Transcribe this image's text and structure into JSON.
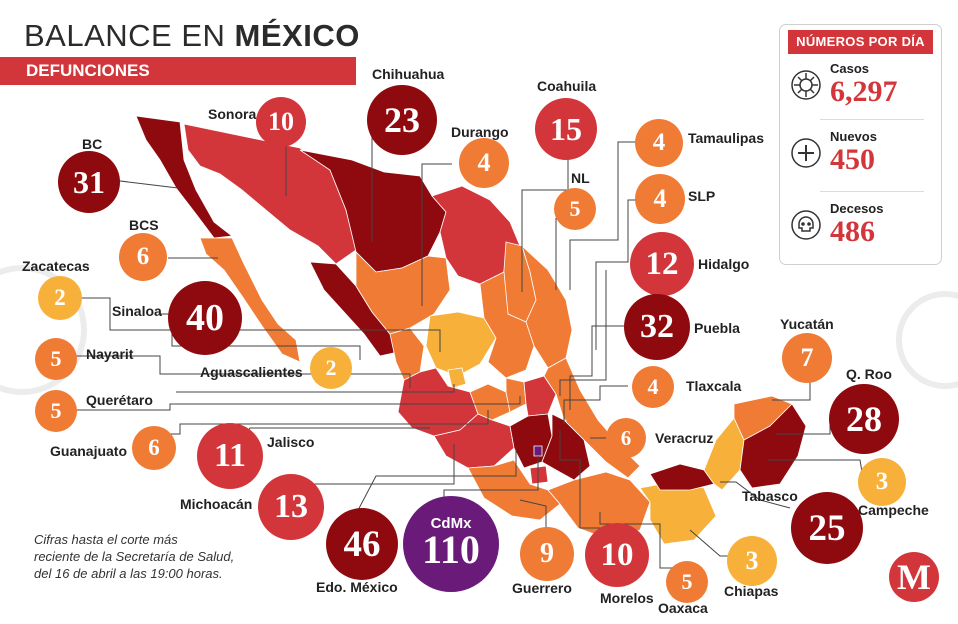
{
  "header": {
    "title_light": "BALANCE EN",
    "title_bold": "MÉXICO",
    "subtitle": "DEFUNCIONES"
  },
  "colors": {
    "level_1": "#f7b13b",
    "level_2": "#f07b35",
    "level_3": "#d3363a",
    "level_4": "#8f0a0f",
    "cdmx": "#6a1b7a",
    "accent": "#d3363a"
  },
  "stats_panel": {
    "heading": "NÚMEROS POR DÍA",
    "casos_label": "Casos",
    "casos_value": "6,297",
    "nuevos_label": "Nuevos",
    "nuevos_value": "450",
    "decesos_label": "Decesos",
    "decesos_value": "486",
    "icons": [
      "virus-icon",
      "plus-icon",
      "skull-icon"
    ]
  },
  "states": [
    {
      "name": "BC",
      "deaths": "31",
      "level": 4
    },
    {
      "name": "Sonora",
      "deaths": "10",
      "level": 3
    },
    {
      "name": "Chihuahua",
      "deaths": "23",
      "level": 4
    },
    {
      "name": "Durango",
      "deaths": "4",
      "level": 2
    },
    {
      "name": "Coahuila",
      "deaths": "15",
      "level": 3
    },
    {
      "name": "NL",
      "deaths": "5",
      "level": 2
    },
    {
      "name": "Tamaulipas",
      "deaths": "4",
      "level": 2
    },
    {
      "name": "SLP",
      "deaths": "4",
      "level": 2
    },
    {
      "name": "Hidalgo",
      "deaths": "12",
      "level": 3
    },
    {
      "name": "BCS",
      "deaths": "6",
      "level": 2
    },
    {
      "name": "Zacatecas",
      "deaths": "2",
      "level": 1
    },
    {
      "name": "Sinaloa",
      "deaths": "40",
      "level": 4
    },
    {
      "name": "Nayarit",
      "deaths": "5",
      "level": 2
    },
    {
      "name": "Aguascalientes",
      "deaths": "2",
      "level": 1
    },
    {
      "name": "Querétaro",
      "deaths": "5",
      "level": 2
    },
    {
      "name": "Guanajuato",
      "deaths": "6",
      "level": 2
    },
    {
      "name": "Jalisco",
      "deaths": "11",
      "level": 3
    },
    {
      "name": "Michoacán",
      "deaths": "13",
      "level": 3
    },
    {
      "name": "Edo. México",
      "deaths": "46",
      "level": 4
    },
    {
      "name": "CdMx",
      "deaths": "110",
      "level": 5
    },
    {
      "name": "Guerrero",
      "deaths": "9",
      "level": 2
    },
    {
      "name": "Morelos",
      "deaths": "10",
      "level": 3
    },
    {
      "name": "Oaxaca",
      "deaths": "5",
      "level": 2
    },
    {
      "name": "Chiapas",
      "deaths": "3",
      "level": 1
    },
    {
      "name": "Puebla",
      "deaths": "32",
      "level": 4
    },
    {
      "name": "Tlaxcala",
      "deaths": "4",
      "level": 2
    },
    {
      "name": "Veracruz",
      "deaths": "6",
      "level": 2
    },
    {
      "name": "Yucatán",
      "deaths": "7",
      "level": 2
    },
    {
      "name": "Q. Roo",
      "deaths": "28",
      "level": 4
    },
    {
      "name": "Campeche",
      "deaths": "3",
      "level": 1
    },
    {
      "name": "Tabasco",
      "deaths": "25",
      "level": 4
    }
  ],
  "footnote": {
    "line1": "Cifras hasta el corte más",
    "line2": "reciente de la Secretaría de Salud,",
    "line3": "del 16 de abril a las 19:00 horas."
  },
  "logo_letter": "M"
}
